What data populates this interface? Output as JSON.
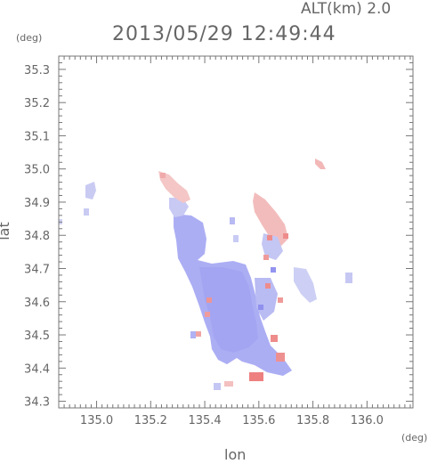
{
  "header": {
    "altitude_label": "ALT(km) 2.0",
    "datetime": "2013/05/29 12:49:44"
  },
  "axes": {
    "y_unit": "(deg)",
    "x_unit": "(deg)",
    "x_label": "lon",
    "y_label": "lat"
  },
  "chart_data": {
    "type": "heatmap",
    "xlabel": "lon",
    "ylabel": "lat",
    "xlim": [
      134.86,
      136.17
    ],
    "ylim": [
      34.28,
      35.34
    ],
    "x_ticks": [
      135.0,
      135.2,
      135.4,
      135.6,
      135.8,
      136.0
    ],
    "x_tick_labels": [
      "135.0",
      "135.2",
      "135.4",
      "135.6",
      "135.8",
      "136.0"
    ],
    "y_ticks": [
      34.3,
      34.4,
      34.5,
      34.6,
      34.7,
      34.8,
      34.9,
      35.0,
      35.1,
      35.2,
      35.3
    ],
    "y_tick_labels": [
      "34.3",
      "34.4",
      "34.5",
      "34.6",
      "34.7",
      "34.8",
      "34.9",
      "35.0",
      "35.1",
      "35.2",
      "35.3"
    ],
    "colors": {
      "approaching": "#9f9ff5",
      "receding": "#f08c8c",
      "light_blue": "#d6d8f4",
      "light_red": "#f6cccc",
      "axis": "#777777"
    }
  }
}
